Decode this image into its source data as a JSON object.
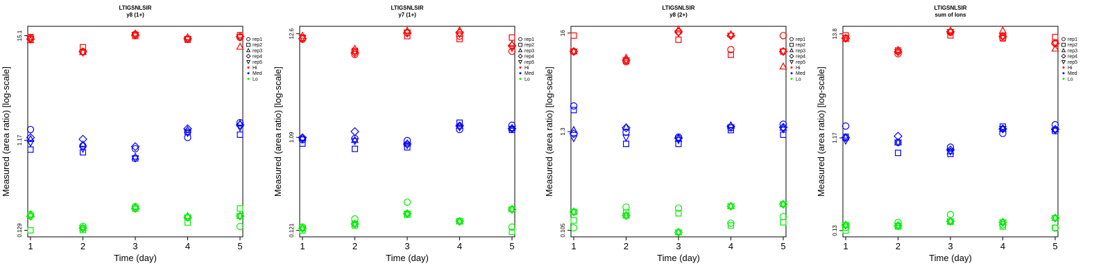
{
  "chart_data": [
    {
      "type": "scatter",
      "title": "LTIGSNLSIR",
      "subtitle": "y8 (1+)",
      "xlabel": "Time (day)",
      "ylabel": "Measured (area ratio) [log-scale]",
      "yscale": "log",
      "ytick_labels": [
        "0.129",
        "1.17",
        "15.1"
      ],
      "ylim": [
        0.11,
        19.0
      ],
      "x_ticks": [
        1,
        2,
        3,
        4,
        5
      ],
      "legend_position": "right",
      "legend": {
        "shapes": [
          "rep1",
          "rep2",
          "rep3",
          "rep4",
          "rep5"
        ],
        "colors": [
          "Hi",
          "Med",
          "Lo"
        ]
      },
      "colors": {
        "Hi": "#ff0000",
        "Med": "#0000ff",
        "Lo": "#00ee00"
      },
      "series": [
        {
          "group": "Hi",
          "rep": "rep1",
          "shape": "circle",
          "values": [
            14.2,
            10.2,
            15.6,
            13.8,
            14.5
          ]
        },
        {
          "group": "Hi",
          "rep": "rep2",
          "shape": "square",
          "values": [
            14.6,
            11.4,
            15.0,
            13.7,
            15.3
          ]
        },
        {
          "group": "Hi",
          "rep": "rep3",
          "shape": "triangle-up",
          "values": [
            13.5,
            10.1,
            15.9,
            14.5,
            11.5
          ]
        },
        {
          "group": "Hi",
          "rep": "rep4",
          "shape": "diamond",
          "values": [
            13.9,
            10.2,
            15.3,
            14.1,
            14.8
          ]
        },
        {
          "group": "Hi",
          "rep": "rep5",
          "shape": "triangle-down",
          "values": [
            14.0,
            10.0,
            15.5,
            14.0,
            14.6
          ]
        },
        {
          "group": "Med",
          "rep": "rep1",
          "shape": "circle",
          "values": [
            1.52,
            1.02,
            0.95,
            1.25,
            1.8
          ]
        },
        {
          "group": "Med",
          "rep": "rep2",
          "shape": "square",
          "values": [
            0.93,
            0.87,
            0.75,
            1.43,
            1.34
          ]
        },
        {
          "group": "Med",
          "rep": "rep3",
          "shape": "triangle-up",
          "values": [
            1.2,
            1.05,
            0.78,
            1.5,
            1.75
          ]
        },
        {
          "group": "Med",
          "rep": "rep4",
          "shape": "diamond",
          "values": [
            1.25,
            1.2,
            1.0,
            1.55,
            1.7
          ]
        },
        {
          "group": "Med",
          "rep": "rep5",
          "shape": "triangle-down",
          "values": [
            1.1,
            0.95,
            0.75,
            1.4,
            1.6
          ]
        },
        {
          "group": "Lo",
          "rep": "rep1",
          "shape": "circle",
          "values": [
            0.19,
            0.142,
            0.23,
            0.177,
            0.142
          ]
        },
        {
          "group": "Lo",
          "rep": "rep2",
          "shape": "square",
          "values": [
            0.129,
            0.13,
            0.22,
            0.156,
            0.22
          ]
        },
        {
          "group": "Lo",
          "rep": "rep3",
          "shape": "triangle-up",
          "values": [
            0.19,
            0.136,
            0.23,
            0.183,
            0.183
          ]
        },
        {
          "group": "Lo",
          "rep": "rep4",
          "shape": "diamond",
          "values": [
            0.182,
            0.136,
            0.22,
            0.177,
            0.183
          ]
        },
        {
          "group": "Lo",
          "rep": "rep5",
          "shape": "triangle-down",
          "values": [
            0.182,
            0.136,
            0.22,
            0.177,
            0.183
          ]
        }
      ]
    },
    {
      "type": "scatter",
      "title": "LTIGSNLSIR",
      "subtitle": "y7 (1+)",
      "xlabel": "Time (day)",
      "ylabel": "Measured (area ratio) [log-scale]",
      "yscale": "log",
      "ytick_labels": [
        "0.121",
        "1.09",
        "12.6"
      ],
      "ylim": [
        0.104,
        15.0
      ],
      "x_ticks": [
        1,
        2,
        3,
        4,
        5
      ],
      "legend_position": "right",
      "legend": {
        "shapes": [
          "rep1",
          "rep2",
          "rep3",
          "rep4",
          "rep5"
        ],
        "colors": [
          "Hi",
          "Med",
          "Lo"
        ]
      },
      "colors": {
        "Hi": "#ff0000",
        "Med": "#0000ff",
        "Lo": "#00ee00"
      },
      "series": [
        {
          "group": "Hi",
          "rep": "rep1",
          "shape": "circle",
          "values": [
            11.1,
            7.7,
            12.9,
            11.9,
            8.3
          ]
        },
        {
          "group": "Hi",
          "rep": "rep2",
          "shape": "square",
          "values": [
            11.5,
            8.4,
            11.9,
            11.1,
            11.5
          ]
        },
        {
          "group": "Hi",
          "rep": "rep3",
          "shape": "triangle-up",
          "values": [
            12.0,
            8.8,
            13.5,
            13.6,
            9.8
          ]
        },
        {
          "group": "Hi",
          "rep": "rep4",
          "shape": "diamond",
          "values": [
            11.2,
            8.0,
            12.8,
            12.9,
            9.5
          ]
        },
        {
          "group": "Hi",
          "rep": "rep5",
          "shape": "triangle-down",
          "values": [
            11.4,
            8.2,
            13.0,
            12.5,
            9.0
          ]
        },
        {
          "group": "Med",
          "rep": "rep1",
          "shape": "circle",
          "values": [
            1.03,
            1.06,
            1.01,
            1.31,
            1.45
          ]
        },
        {
          "group": "Med",
          "rep": "rep2",
          "shape": "square",
          "values": [
            0.94,
            0.83,
            0.86,
            1.54,
            1.3
          ]
        },
        {
          "group": "Med",
          "rep": "rep3",
          "shape": "triangle-up",
          "values": [
            1.08,
            1.02,
            0.94,
            1.43,
            1.35
          ]
        },
        {
          "group": "Med",
          "rep": "rep4",
          "shape": "diamond",
          "values": [
            1.08,
            1.25,
            0.93,
            1.43,
            1.34
          ]
        },
        {
          "group": "Med",
          "rep": "rep5",
          "shape": "triangle-down",
          "values": [
            1.04,
            1.0,
            0.91,
            1.38,
            1.33
          ]
        },
        {
          "group": "Lo",
          "rep": "rep1",
          "shape": "circle",
          "values": [
            0.131,
            0.159,
            0.236,
            0.15,
            0.131
          ]
        },
        {
          "group": "Lo",
          "rep": "rep2",
          "shape": "square",
          "values": [
            0.121,
            0.136,
            0.175,
            0.15,
            0.117
          ]
        },
        {
          "group": "Lo",
          "rep": "rep3",
          "shape": "triangle-up",
          "values": [
            0.127,
            0.141,
            0.18,
            0.15,
            0.199
          ]
        },
        {
          "group": "Lo",
          "rep": "rep4",
          "shape": "diamond",
          "values": [
            0.127,
            0.141,
            0.18,
            0.15,
            0.199
          ]
        },
        {
          "group": "Lo",
          "rep": "rep5",
          "shape": "triangle-down",
          "values": [
            0.127,
            0.141,
            0.18,
            0.15,
            0.199
          ]
        }
      ]
    },
    {
      "type": "scatter",
      "title": "LTIGSNLSIR",
      "subtitle": "y8 (2+)",
      "xlabel": "Time (day)",
      "ylabel": "Measured (area ratio) [log-scale]",
      "yscale": "log",
      "ytick_labels": [
        "0.105",
        "1.3",
        "16"
      ],
      "ylim": [
        0.089,
        19.0
      ],
      "x_ticks": [
        1,
        2,
        3,
        4,
        5
      ],
      "legend_position": "right",
      "legend": {
        "shapes": [
          "rep1",
          "rep2",
          "rep3",
          "rep4",
          "rep5"
        ],
        "colors": [
          "Hi",
          "Med",
          "Lo"
        ]
      },
      "colors": {
        "Hi": "#ff0000",
        "Med": "#0000ff",
        "Lo": "#00ee00"
      },
      "series": [
        {
          "group": "Hi",
          "rep": "rep1",
          "shape": "circle",
          "values": [
            10.0,
            7.7,
            16.5,
            10.5,
            15.0
          ]
        },
        {
          "group": "Hi",
          "rep": "rep2",
          "shape": "square",
          "values": [
            15.0,
            7.9,
            13.5,
            9.2,
            10.0
          ]
        },
        {
          "group": "Hi",
          "rep": "rep3",
          "shape": "triangle-up",
          "values": [
            10.0,
            8.5,
            17.5,
            15.5,
            6.8
          ]
        },
        {
          "group": "Hi",
          "rep": "rep4",
          "shape": "diamond",
          "values": [
            10.0,
            8.0,
            16.5,
            15.0,
            10.0
          ]
        },
        {
          "group": "Hi",
          "rep": "rep5",
          "shape": "triangle-down",
          "values": [
            10.0,
            8.0,
            16.0,
            15.0,
            10.0
          ]
        },
        {
          "group": "Med",
          "rep": "rep1",
          "shape": "circle",
          "values": [
            2.5,
            1.28,
            1.13,
            1.43,
            1.57
          ]
        },
        {
          "group": "Med",
          "rep": "rep2",
          "shape": "square",
          "values": [
            2.25,
            0.95,
            0.95,
            1.35,
            1.2
          ]
        },
        {
          "group": "Med",
          "rep": "rep3",
          "shape": "triangle-up",
          "values": [
            1.35,
            1.45,
            1.08,
            1.52,
            1.43
          ]
        },
        {
          "group": "Med",
          "rep": "rep4",
          "shape": "diamond",
          "values": [
            1.23,
            1.43,
            1.1,
            1.48,
            1.45
          ]
        },
        {
          "group": "Med",
          "rep": "rep5",
          "shape": "triangle-down",
          "values": [
            1.1,
            1.12,
            1.05,
            1.45,
            1.38
          ]
        },
        {
          "group": "Lo",
          "rep": "rep1",
          "shape": "circle",
          "values": [
            0.112,
            0.19,
            0.185,
            0.126,
            0.149
          ]
        },
        {
          "group": "Lo",
          "rep": "rep2",
          "shape": "square",
          "values": [
            0.135,
            0.165,
            0.162,
            0.119,
            0.129
          ]
        },
        {
          "group": "Lo",
          "rep": "rep3",
          "shape": "triangle-up",
          "values": [
            0.168,
            0.153,
            0.1,
            0.194,
            0.204
          ]
        },
        {
          "group": "Lo",
          "rep": "rep4",
          "shape": "diamond",
          "values": [
            0.168,
            0.153,
            0.1,
            0.194,
            0.204
          ]
        },
        {
          "group": "Lo",
          "rep": "rep5",
          "shape": "triangle-down",
          "values": [
            0.168,
            0.153,
            0.1,
            0.194,
            0.204
          ]
        }
      ]
    },
    {
      "type": "scatter",
      "title": "LTIGSNLSIR",
      "subtitle": "sum of Ions",
      "xlabel": "Time (day)",
      "ylabel": "Measured (area ratio) [log-scale]",
      "yscale": "log",
      "ytick_labels": [
        "0.13",
        "1.17",
        "13.8"
      ],
      "ylim": [
        0.112,
        16.5
      ],
      "x_ticks": [
        1,
        2,
        3,
        4,
        5
      ],
      "legend_position": "right",
      "legend": {
        "shapes": [
          "rep1",
          "rep2",
          "rep3",
          "rep4",
          "rep5"
        ],
        "colors": [
          "Hi",
          "Med",
          "Lo"
        ]
      },
      "colors": {
        "Hi": "#ff0000",
        "Med": "#0000ff",
        "Lo": "#00ee00"
      },
      "series": [
        {
          "group": "Hi",
          "rep": "rep1",
          "shape": "circle",
          "values": [
            12.5,
            8.6,
            14.3,
            12.5,
            11.0
          ]
        },
        {
          "group": "Hi",
          "rep": "rep2",
          "shape": "square",
          "values": [
            13.3,
            9.3,
            13.3,
            12.4,
            12.8
          ]
        },
        {
          "group": "Hi",
          "rep": "rep3",
          "shape": "triangle-up",
          "values": [
            12.2,
            9.4,
            14.8,
            14.9,
            9.7
          ]
        },
        {
          "group": "Hi",
          "rep": "rep4",
          "shape": "diamond",
          "values": [
            12.4,
            9.0,
            14.5,
            13.0,
            11.0
          ]
        },
        {
          "group": "Hi",
          "rep": "rep5",
          "shape": "triangle-down",
          "values": [
            12.5,
            9.0,
            14.5,
            13.0,
            11.0
          ]
        },
        {
          "group": "Med",
          "rep": "rep1",
          "shape": "circle",
          "values": [
            1.55,
            1.05,
            0.94,
            1.3,
            1.6
          ]
        },
        {
          "group": "Med",
          "rep": "rep2",
          "shape": "square",
          "values": [
            1.2,
            0.82,
            0.8,
            1.53,
            1.38
          ]
        },
        {
          "group": "Med",
          "rep": "rep3",
          "shape": "triangle-up",
          "values": [
            1.18,
            1.05,
            0.85,
            1.45,
            1.43
          ]
        },
        {
          "group": "Med",
          "rep": "rep4",
          "shape": "diamond",
          "values": [
            1.18,
            1.22,
            0.88,
            1.45,
            1.43
          ]
        },
        {
          "group": "Med",
          "rep": "rep5",
          "shape": "triangle-down",
          "values": [
            1.1,
            1.05,
            0.85,
            1.45,
            1.4
          ]
        },
        {
          "group": "Lo",
          "rep": "rep1",
          "shape": "circle",
          "values": [
            0.14,
            0.158,
            0.19,
            0.149,
            0.138
          ]
        },
        {
          "group": "Lo",
          "rep": "rep2",
          "shape": "square",
          "values": [
            0.13,
            0.143,
            0.16,
            0.143,
            0.139
          ]
        },
        {
          "group": "Lo",
          "rep": "rep3",
          "shape": "triangle-up",
          "values": [
            0.148,
            0.146,
            0.162,
            0.158,
            0.175
          ]
        },
        {
          "group": "Lo",
          "rep": "rep4",
          "shape": "diamond",
          "values": [
            0.148,
            0.146,
            0.162,
            0.158,
            0.175
          ]
        },
        {
          "group": "Lo",
          "rep": "rep5",
          "shape": "triangle-down",
          "values": [
            0.148,
            0.146,
            0.162,
            0.158,
            0.175
          ]
        }
      ]
    }
  ]
}
